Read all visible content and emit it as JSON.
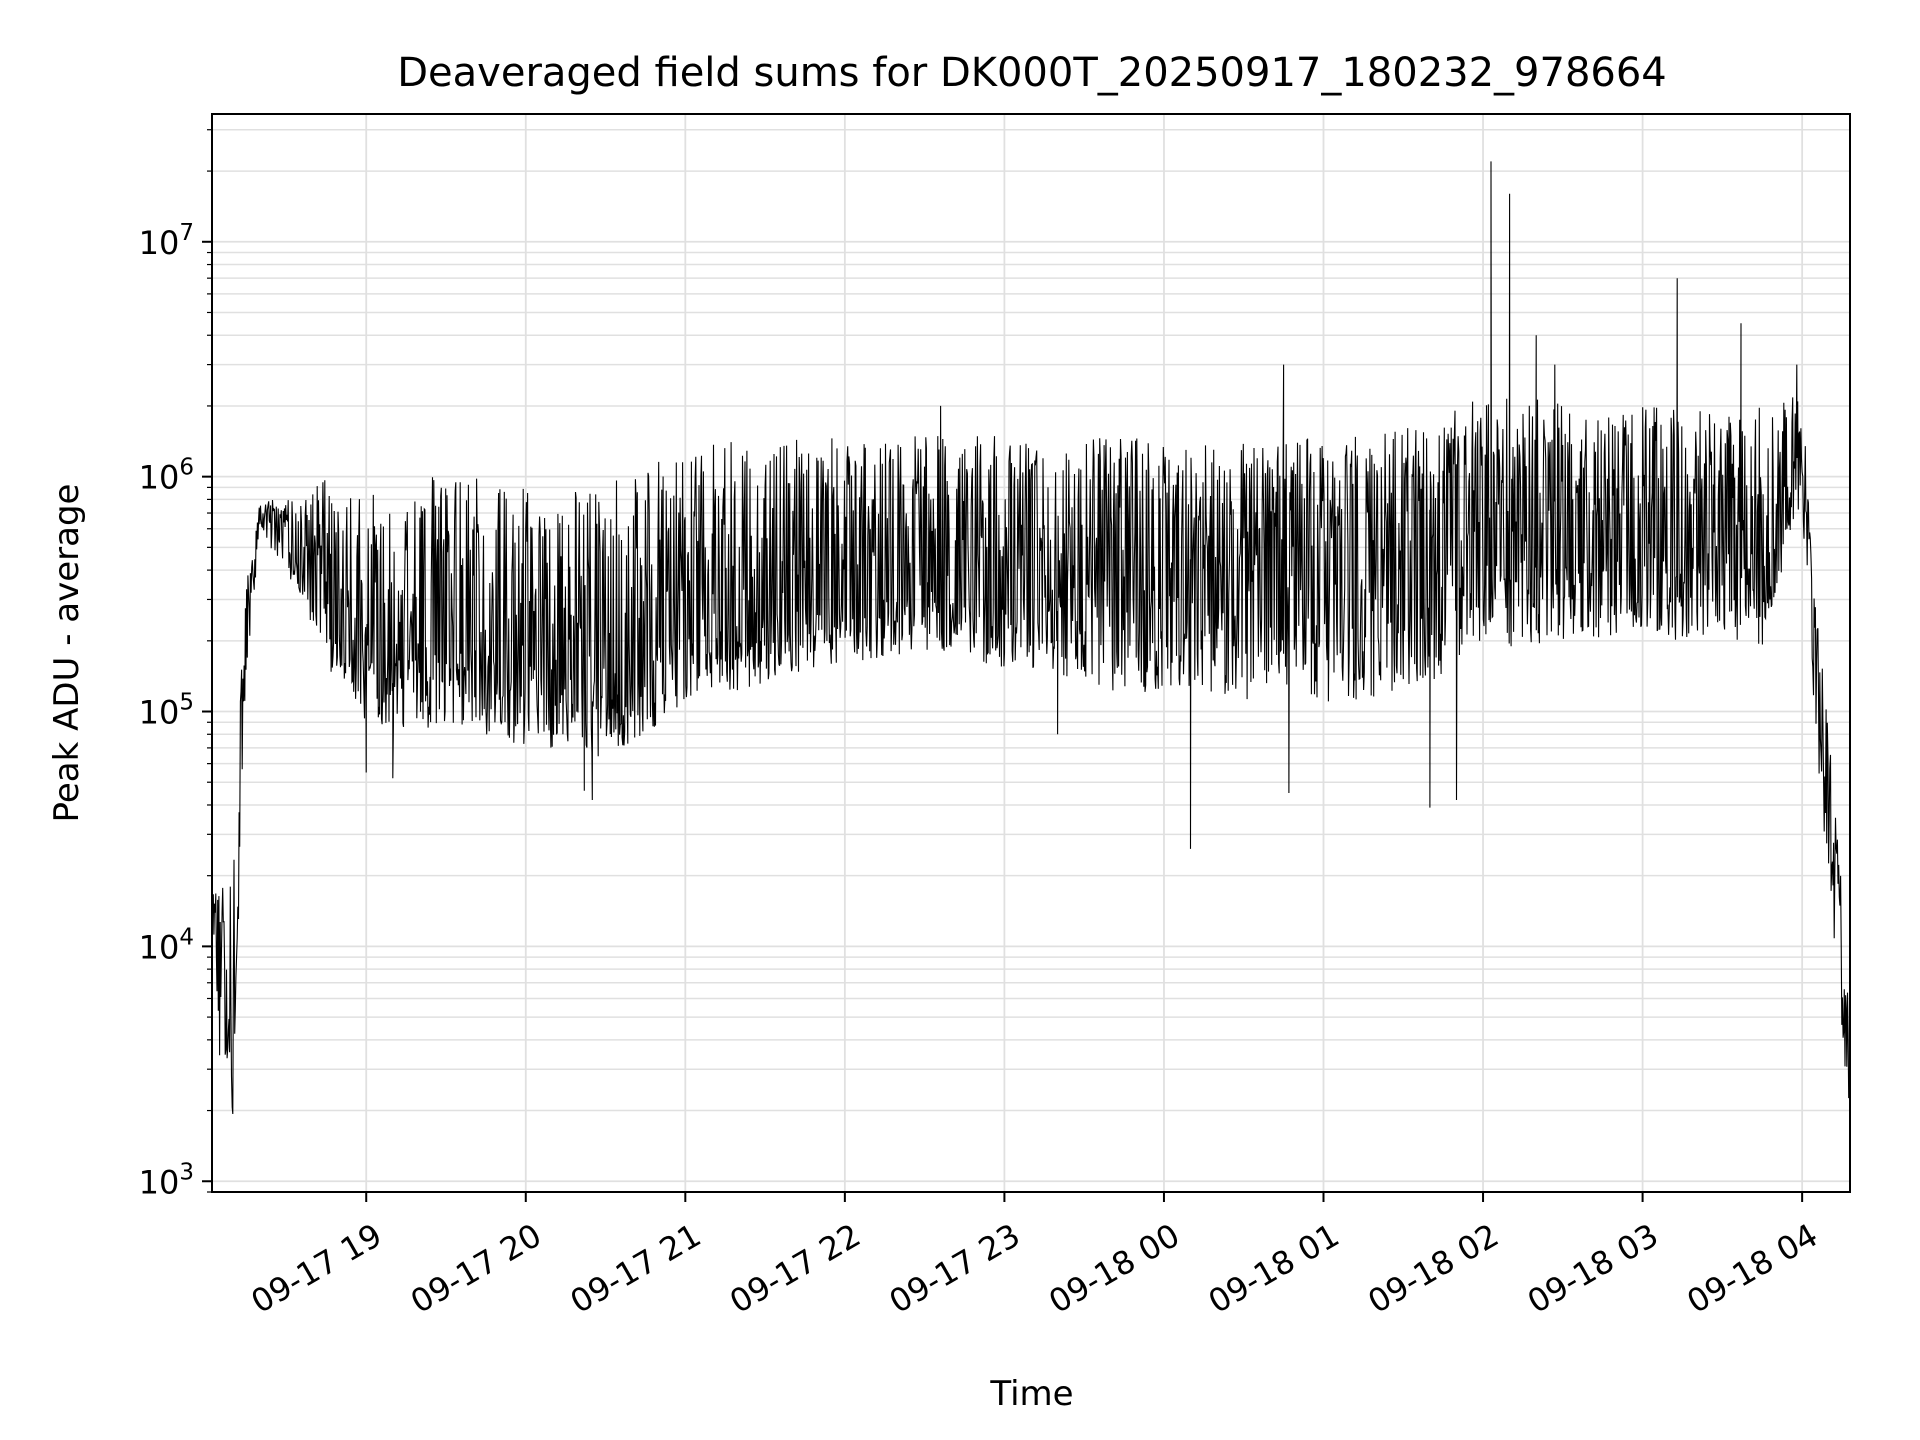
{
  "chart_data": {
    "type": "line",
    "title": "Deaveraged field sums for DK000T_20250917_180232_978664",
    "xlabel": "Time",
    "ylabel": "Peak ADU - average",
    "yscale": "log",
    "ylim": [
      900,
      35000000
    ],
    "xlim": [
      "09-17 18:02",
      "09-18 04:18"
    ],
    "grid": "major and minor, light gray",
    "line_color": "#000000",
    "x_ticks": [
      "09-17 19",
      "09-17 20",
      "09-17 21",
      "09-17 22",
      "09-17 23",
      "09-18 00",
      "09-18 01",
      "09-18 02",
      "09-18 03",
      "09-18 04"
    ],
    "y_ticks": [
      {
        "base": "10",
        "exp": "3",
        "value": 1000
      },
      {
        "base": "10",
        "exp": "4",
        "value": 10000
      },
      {
        "base": "10",
        "exp": "5",
        "value": 100000
      },
      {
        "base": "10",
        "exp": "6",
        "value": 1000000
      },
      {
        "base": "10",
        "exp": "7",
        "value": 10000000
      }
    ],
    "series": [
      {
        "envelope": {
          "x": [
            "09-17 18:02",
            "09-17 18:06",
            "09-17 18:10",
            "09-17 18:14",
            "09-17 18:20",
            "09-17 18:28",
            "09-17 18:36",
            "09-17 18:45",
            "09-17 18:50",
            "09-17 19:00",
            "09-17 19:15",
            "09-17 19:30",
            "09-17 19:45",
            "09-17 20:00",
            "09-17 20:15",
            "09-17 20:30",
            "09-17 20:45",
            "09-17 21:00",
            "09-17 21:15",
            "09-17 21:30",
            "09-17 21:45",
            "09-17 22:00",
            "09-17 22:15",
            "09-17 22:30",
            "09-17 22:45",
            "09-17 23:00",
            "09-17 23:15",
            "09-17 23:30",
            "09-17 23:45",
            "09-18 00:00",
            "09-18 00:15",
            "09-18 00:30",
            "09-18 00:45",
            "09-18 01:00",
            "09-18 01:15",
            "09-18 01:30",
            "09-18 01:45",
            "09-18 02:00",
            "09-18 02:15",
            "09-18 02:30",
            "09-18 02:45",
            "09-18 03:00",
            "09-18 03:15",
            "09-18 03:30",
            "09-18 03:45",
            "09-18 04:00",
            "09-18 04:03",
            "09-18 04:06",
            "09-18 04:10",
            "09-18 04:14",
            "09-18 04:18"
          ],
          "center": [
            15000,
            8000,
            4000,
            150000,
            700000,
            650000,
            400000,
            300000,
            250000,
            200000,
            200000,
            200000,
            180000,
            180000,
            160000,
            150000,
            180000,
            220000,
            240000,
            260000,
            280000,
            300000,
            320000,
            330000,
            340000,
            350000,
            360000,
            370000,
            380000,
            380000,
            390000,
            400000,
            410000,
            420000,
            430000,
            450000,
            480000,
            520000,
            550000,
            560000,
            550000,
            540000,
            530000,
            520000,
            510000,
            1400000,
            300000,
            100000,
            40000,
            15000,
            3000
          ],
          "low": [
            10000,
            2000,
            1500,
            100000,
            600000,
            400000,
            300000,
            150000,
            140000,
            90000,
            80000,
            90000,
            80000,
            70000,
            70000,
            60000,
            80000,
            110000,
            120000,
            130000,
            150000,
            160000,
            170000,
            180000,
            170000,
            150000,
            140000,
            130000,
            120000,
            120000,
            120000,
            110000,
            110000,
            110000,
            110000,
            120000,
            140000,
            180000,
            190000,
            200000,
            200000,
            200000,
            200000,
            200000,
            190000,
            800000,
            150000,
            50000,
            20000,
            6000,
            1500
          ],
          "high": [
            22000,
            18000,
            20000,
            300000,
            800000,
            800000,
            800000,
            1000000,
            900000,
            1000000,
            1000000,
            1000000,
            1000000,
            900000,
            900000,
            1000000,
            1200000,
            1300000,
            1400000,
            1500000,
            1500000,
            1500000,
            1500000,
            1500000,
            1500000,
            1500000,
            1500000,
            1500000,
            1500000,
            1400000,
            1400000,
            1400000,
            1400000,
            1500000,
            1500000,
            1600000,
            1800000,
            2200000,
            2200000,
            2100000,
            2000000,
            2000000,
            2000000,
            2000000,
            2000000,
            2500000,
            600000,
            250000,
            80000,
            25000,
            6000
          ]
        },
        "spikes_high": [
          {
            "x": "09-18 02:03",
            "y": 22000000
          },
          {
            "x": "09-18 02:10",
            "y": 16000000
          },
          {
            "x": "09-18 03:13",
            "y": 7000000
          },
          {
            "x": "09-18 03:37",
            "y": 4500000
          },
          {
            "x": "09-18 02:20",
            "y": 4000000
          },
          {
            "x": "09-18 02:27",
            "y": 3000000
          },
          {
            "x": "09-18 00:45",
            "y": 3000000
          },
          {
            "x": "09-18 03:58",
            "y": 3000000
          },
          {
            "x": "09-17 22:36",
            "y": 2000000
          }
        ],
        "spikes_low": [
          {
            "x": "09-18 00:10",
            "y": 26000
          },
          {
            "x": "09-18 01:40",
            "y": 39000
          },
          {
            "x": "09-18 01:50",
            "y": 42000
          },
          {
            "x": "09-18 00:47",
            "y": 45000
          },
          {
            "x": "09-17 20:25",
            "y": 42000
          },
          {
            "x": "09-17 20:22",
            "y": 46000
          },
          {
            "x": "09-17 19:00",
            "y": 55000
          },
          {
            "x": "09-17 19:10",
            "y": 52000
          },
          {
            "x": "09-17 23:20",
            "y": 80000
          }
        ]
      }
    ]
  }
}
